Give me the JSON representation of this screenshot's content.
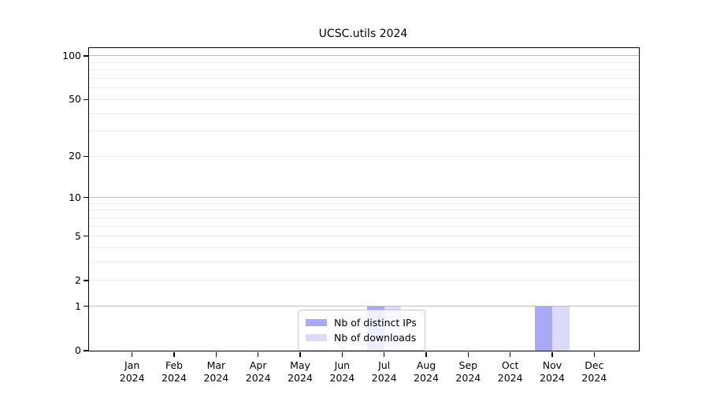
{
  "title": "UCSC.utils 2024",
  "legend": {
    "items": [
      {
        "label": "Nb of distinct IPs",
        "color": "#a9a9f5"
      },
      {
        "label": "Nb of downloads",
        "color": "#dbdbf8"
      }
    ]
  },
  "chart_data": {
    "type": "bar",
    "title": "UCSC.utils 2024",
    "categories": [
      "Jan 2024",
      "Feb 2024",
      "Mar 2024",
      "Apr 2024",
      "May 2024",
      "Jun 2024",
      "Jul 2024",
      "Aug 2024",
      "Sep 2024",
      "Oct 2024",
      "Nov 2024",
      "Dec 2024"
    ],
    "series": [
      {
        "name": "Nb of distinct IPs",
        "color": "#a9a9f5",
        "values": [
          0,
          0,
          0,
          0,
          0,
          0,
          1,
          0,
          0,
          0,
          1,
          0
        ]
      },
      {
        "name": "Nb of downloads",
        "color": "#dbdbf8",
        "values": [
          0,
          0,
          0,
          0,
          0,
          0,
          1,
          0,
          0,
          0,
          1,
          0
        ]
      }
    ],
    "xlabel": "",
    "ylabel": "",
    "yscale": "log10(value+1)",
    "ylim": [
      0,
      113
    ],
    "yticks": [
      0,
      1,
      2,
      5,
      10,
      20,
      50,
      100
    ],
    "major_grid_yticks": [
      1,
      10,
      100
    ],
    "minor_grid_yticks": [
      2,
      3,
      4,
      5,
      6,
      7,
      8,
      9,
      20,
      30,
      40,
      50,
      60,
      70,
      80,
      90
    ],
    "grid": true,
    "legend_position": "bottom-center",
    "colors": {
      "axis": "#000000",
      "major_grid": "#bfbfbf",
      "minor_grid": "#ececec",
      "background": "#ffffff"
    }
  }
}
